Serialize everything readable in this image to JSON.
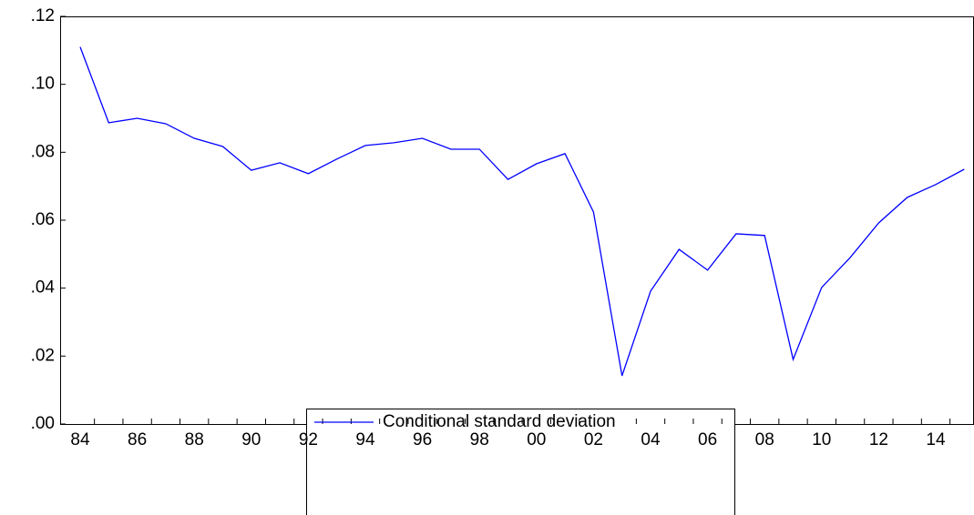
{
  "chart_data": {
    "type": "line",
    "categories": [
      "84",
      null,
      "86",
      null,
      "88",
      null,
      "90",
      null,
      "92",
      null,
      "94",
      null,
      "96",
      null,
      "98",
      null,
      "00",
      null,
      "02",
      null,
      "04",
      null,
      "06",
      null,
      "08",
      null,
      "10",
      null,
      "12",
      null,
      "14",
      null
    ],
    "series": [
      {
        "name": "Conditional standard deviation",
        "color": "#0000ff",
        "values": [
          0.111,
          0.0887,
          0.09,
          0.0884,
          0.0841,
          0.0817,
          0.0747,
          0.0769,
          0.0737,
          0.078,
          0.082,
          0.0828,
          0.0841,
          0.0809,
          0.0809,
          0.072,
          0.0766,
          0.0796,
          0.0624,
          0.0142,
          0.0391,
          0.0514,
          0.0453,
          0.056,
          0.0555,
          0.019,
          0.0402,
          0.049,
          0.0592,
          0.0667,
          0.0705,
          0.075
        ]
      }
    ],
    "ylim": [
      0,
      0.12
    ],
    "yticks": [
      {
        "value": 0,
        "label": ".00"
      },
      {
        "value": 0.02,
        "label": ".02"
      },
      {
        "value": 0.04,
        "label": ".04"
      },
      {
        "value": 0.06,
        "label": ".06"
      },
      {
        "value": 0.08,
        "label": ".08"
      },
      {
        "value": 0.1,
        "label": ".10"
      },
      {
        "value": 0.12,
        "label": ".12"
      }
    ],
    "grid": false
  }
}
